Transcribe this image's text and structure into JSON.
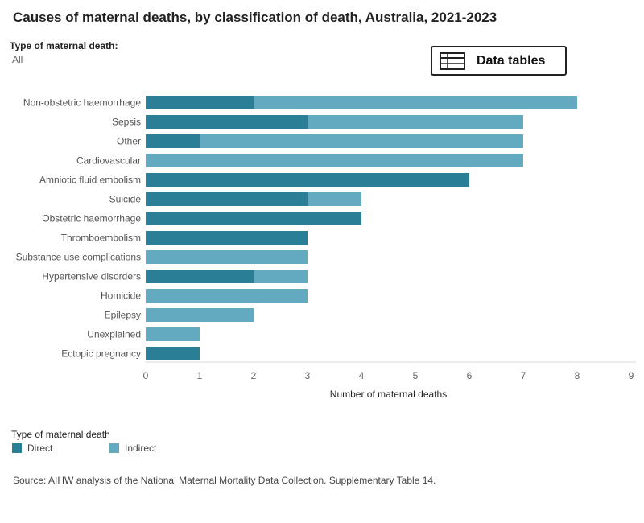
{
  "title": "Causes of maternal deaths, by classification of death, Australia, 2021-2023",
  "filter": {
    "label": "Type of maternal death:",
    "value": "All"
  },
  "data_tables_button": {
    "label": "Data tables",
    "icon": "table-icon"
  },
  "legend": {
    "title": "Type of maternal death",
    "items": [
      {
        "label": "Direct",
        "color": "#2a7f96"
      },
      {
        "label": "Indirect",
        "color": "#63a9bf"
      }
    ]
  },
  "source": "Source: AIHW analysis of the National Maternal Mortality Data Collection. Supplementary Table 14.",
  "chart_data": {
    "type": "bar",
    "orientation": "horizontal",
    "stacked": true,
    "xlabel": "Number of maternal deaths",
    "xlim": [
      0,
      9
    ],
    "xticks": [
      0,
      1,
      2,
      3,
      4,
      5,
      6,
      7,
      8,
      9
    ],
    "grid": false,
    "categories": [
      "Non-obstetric haemorrhage",
      "Sepsis",
      "Other",
      "Cardiovascular",
      "Amniotic fluid embolism",
      "Suicide",
      "Obstetric haemorrhage",
      "Thromboembolism",
      "Substance use complications",
      "Hypertensive disorders",
      "Homicide",
      "Epilepsy",
      "Unexplained",
      "Ectopic pregnancy"
    ],
    "series": [
      {
        "name": "Direct",
        "color": "#2a7f96",
        "values": [
          2,
          3,
          1,
          0,
          6,
          3,
          4,
          3,
          0,
          2,
          0,
          0,
          0,
          1
        ]
      },
      {
        "name": "Indirect",
        "color": "#63a9bf",
        "values": [
          6,
          4,
          6,
          7,
          0,
          1,
          0,
          0,
          3,
          1,
          3,
          2,
          1,
          0
        ]
      }
    ]
  }
}
